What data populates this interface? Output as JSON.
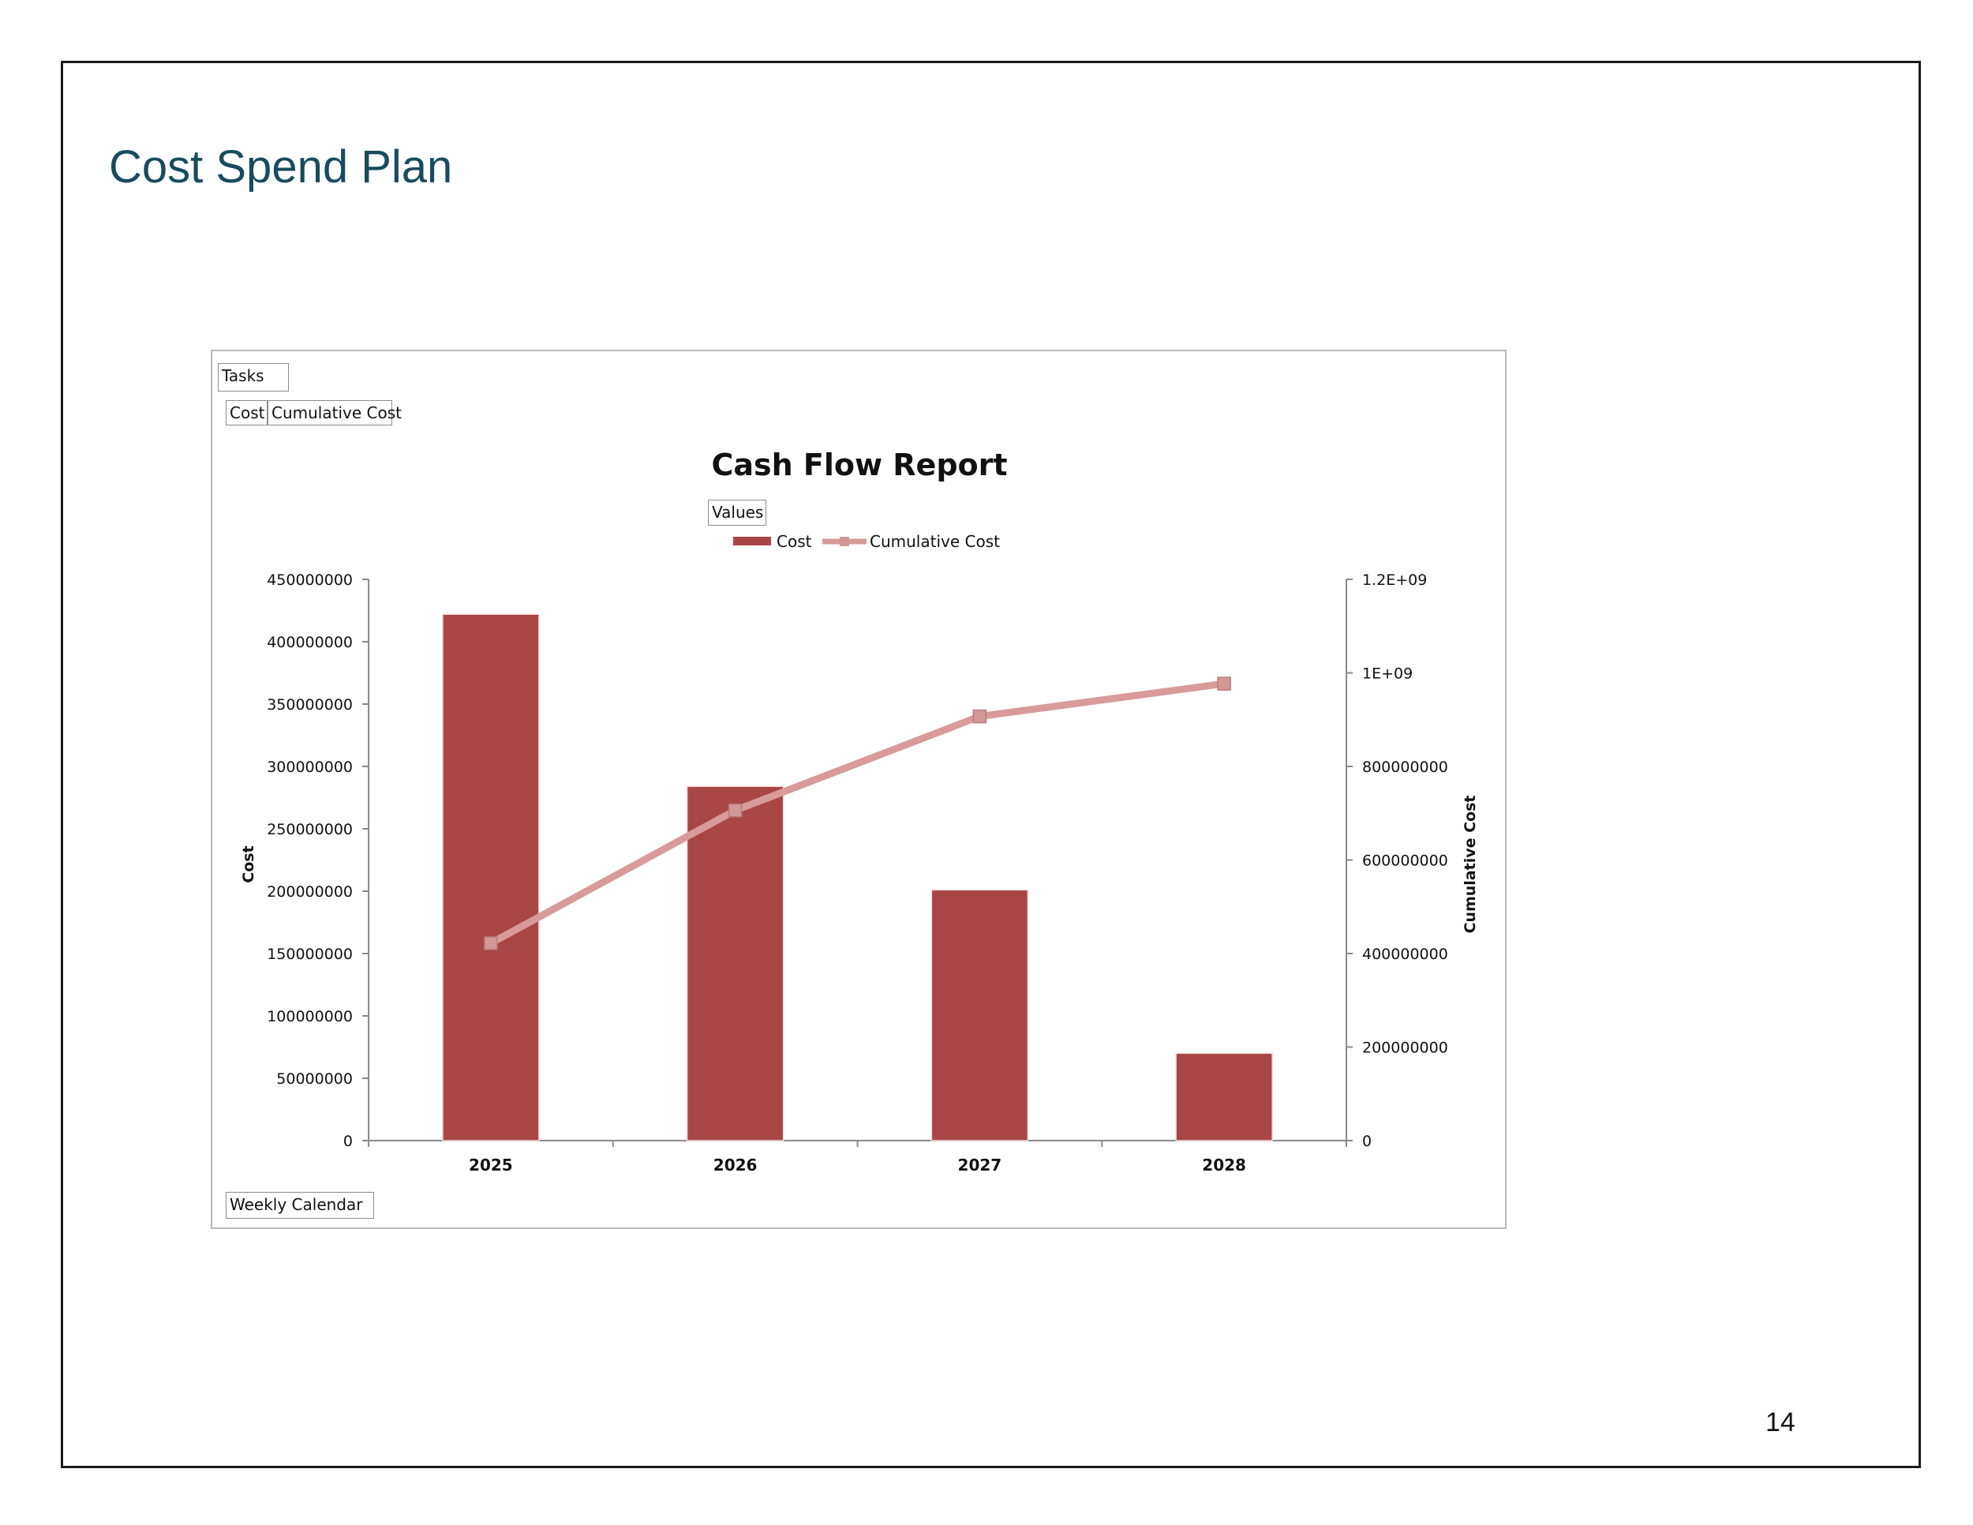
{
  "slide": {
    "title": "Cost Spend Plan",
    "page_number": "14"
  },
  "pivot": {
    "filter_label": "Tasks",
    "value_fields": [
      "Cost",
      "Cumulative Cost"
    ],
    "values_label": "Values",
    "row_field": "Weekly Calendar"
  },
  "colors": {
    "title": "#184b5e",
    "bar": "#a84646",
    "line": "#d89a9a",
    "marker": "#d49797"
  },
  "chart_data": {
    "type": "bar",
    "title": "Cash Flow Report",
    "categories": [
      "2025",
      "2026",
      "2027",
      "2028"
    ],
    "series": [
      {
        "name": "Cost",
        "type": "bar",
        "axis": "left",
        "values": [
          422000000,
          284000000,
          201000000,
          70000000
        ]
      },
      {
        "name": "Cumulative Cost",
        "type": "line",
        "axis": "right",
        "values": [
          422000000,
          706000000,
          907000000,
          977000000
        ]
      }
    ],
    "ylabel": "Cost",
    "y2label": "Cumulative Cost",
    "ylim": [
      0,
      450000000
    ],
    "y2lim": [
      0,
      1200000000
    ],
    "yticks": [
      "0",
      "50000000",
      "100000000",
      "150000000",
      "200000000",
      "250000000",
      "300000000",
      "350000000",
      "400000000",
      "450000000"
    ],
    "y2ticks": [
      "0",
      "200000000",
      "400000000",
      "600000000",
      "800000000",
      "1E+09",
      "1.2E+09"
    ],
    "legend_position": "top",
    "grid": false
  }
}
